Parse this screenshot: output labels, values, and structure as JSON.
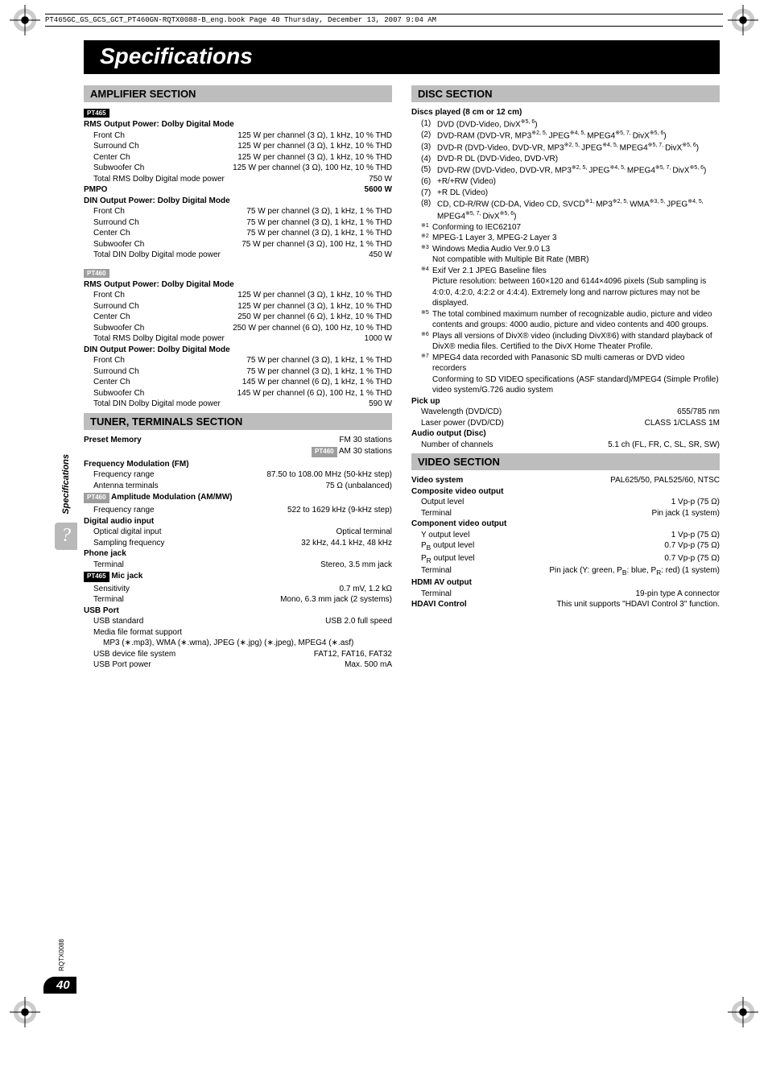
{
  "book_info": "PT465GC_GS_GCS_GCT_PT460GN-RQTX0088-B_eng.book  Page 40  Thursday, December 13, 2007  9:04 AM",
  "main_title": "Specifications",
  "side_label": "Specifications",
  "page_code": "RQTX0088",
  "page_number": "40",
  "amp": {
    "header": "AMPLIFIER SECTION",
    "pt465": "PT465",
    "pt460": "PT460",
    "rms_title": "RMS Output Power: Dolby Digital Mode",
    "din_title": "DIN Output Power: Dolby Digital Mode",
    "pt465_rms": {
      "front": {
        "l": "Front Ch",
        "v": "125 W per channel (3 Ω), 1 kHz, 10 % THD"
      },
      "surround": {
        "l": "Surround Ch",
        "v": "125 W per channel (3 Ω), 1 kHz, 10 % THD"
      },
      "center": {
        "l": "Center Ch",
        "v": "125 W per channel (3 Ω), 1 kHz, 10 % THD"
      },
      "sub": {
        "l": "Subwoofer Ch",
        "v": "125 W per channel (3 Ω), 100 Hz, 10 % THD"
      },
      "total": {
        "l": "Total RMS Dolby Digital mode power",
        "v": "750 W"
      }
    },
    "pmpo": {
      "l": "PMPO",
      "v": "5600 W"
    },
    "pt465_din": {
      "front": {
        "l": "Front Ch",
        "v": "75 W per channel (3 Ω), 1 kHz, 1 % THD"
      },
      "surround": {
        "l": "Surround Ch",
        "v": "75 W per channel (3 Ω), 1 kHz, 1 % THD"
      },
      "center": {
        "l": "Center Ch",
        "v": "75 W per channel (3 Ω), 1 kHz, 1 % THD"
      },
      "sub": {
        "l": "Subwoofer Ch",
        "v": "75 W per channel (3 Ω), 100 Hz, 1 % THD"
      },
      "total": {
        "l": "Total DIN Dolby Digital mode power",
        "v": "450 W"
      }
    },
    "pt460_rms": {
      "front": {
        "l": "Front Ch",
        "v": "125 W per channel (3 Ω), 1 kHz, 10 % THD"
      },
      "surround": {
        "l": "Surround Ch",
        "v": "125 W per channel (3 Ω), 1 kHz, 10 % THD"
      },
      "center": {
        "l": "Center Ch",
        "v": "250 W per channel (6 Ω), 1 kHz, 10 % THD"
      },
      "sub": {
        "l": "Subwoofer Ch",
        "v": "250 W per channel (6 Ω), 100 Hz, 10 % THD"
      },
      "total": {
        "l": "Total RMS Dolby Digital mode power",
        "v": "1000 W"
      }
    },
    "pt460_din": {
      "front": {
        "l": "Front Ch",
        "v": "75 W per channel (3 Ω), 1 kHz, 1 % THD"
      },
      "surround": {
        "l": "Surround Ch",
        "v": "75 W per channel (3 Ω), 1 kHz, 1 % THD"
      },
      "center": {
        "l": "Center Ch",
        "v": "145 W per channel (6 Ω), 1 kHz, 1 % THD"
      },
      "sub": {
        "l": "Subwoofer Ch",
        "v": "145 W per channel (6 Ω), 100 Hz, 1 % THD"
      },
      "total": {
        "l": "Total DIN Dolby Digital mode power",
        "v": "590 W"
      }
    }
  },
  "tuner": {
    "header": "TUNER, TERMINALS SECTION",
    "preset": {
      "l": "Preset Memory",
      "v1": "FM 30 stations",
      "v2": " AM 30 stations"
    },
    "fm_title": "Frequency Modulation (FM)",
    "fm_range": {
      "l": "Frequency range",
      "v": "87.50 to 108.00 MHz (50-kHz step)"
    },
    "fm_ant": {
      "l": "Antenna terminals",
      "v": "75 Ω (unbalanced)"
    },
    "am_title": " Amplitude Modulation (AM/MW)",
    "am_range": {
      "l": "Frequency range",
      "v": "522 to 1629 kHz (9-kHz step)"
    },
    "dig_title": "Digital audio input",
    "dig_opt": {
      "l": "Optical digital input",
      "v": "Optical terminal"
    },
    "dig_samp": {
      "l": "Sampling frequency",
      "v": "32 kHz, 44.1 kHz, 48 kHz"
    },
    "phone_title": "Phone jack",
    "phone_term": {
      "l": "Terminal",
      "v": "Stereo, 3.5 mm jack"
    },
    "mic_title": " Mic jack",
    "mic_sens": {
      "l": "Sensitivity",
      "v": "0.7 mV, 1.2 kΩ"
    },
    "mic_term": {
      "l": "Terminal",
      "v": "Mono, 6.3 mm jack (2 systems)"
    },
    "usb_title": "USB Port",
    "usb_std": {
      "l": "USB standard",
      "v": "USB 2.0 full speed"
    },
    "usb_media": {
      "l": "Media file format support"
    },
    "usb_media_val": "MP3 (∗.mp3), WMA (∗.wma), JPEG (∗.jpg) (∗.jpeg), MPEG4 (∗.asf)",
    "usb_fs": {
      "l": "USB device file system",
      "v": "FAT12, FAT16, FAT32"
    },
    "usb_power": {
      "l": "USB Port power",
      "v": "Max. 500 mA"
    }
  },
  "disc": {
    "header": "DISC SECTION",
    "title": "Discs played (8 cm or 12 cm)",
    "items": [
      {
        "n": "(1)",
        "t": "DVD (DVD-Video, DivX※5, 6)"
      },
      {
        "n": "(2)",
        "t": "DVD-RAM (DVD-VR, MP3※2, 5, JPEG※4, 5, MPEG4※5, 7, DivX※5, 6)"
      },
      {
        "n": "(3)",
        "t": "DVD-R (DVD-Video, DVD-VR, MP3※2, 5, JPEG※4, 5, MPEG4※5, 7, DivX※5, 6)"
      },
      {
        "n": "(4)",
        "t": "DVD-R DL (DVD-Video, DVD-VR)"
      },
      {
        "n": "(5)",
        "t": "DVD-RW (DVD-Video, DVD-VR, MP3※2, 5, JPEG※4, 5, MPEG4※5, 7, DivX※5, 6)"
      },
      {
        "n": "(6)",
        "t": "+R/+RW (Video)"
      },
      {
        "n": "(7)",
        "t": "+R DL (Video)"
      },
      {
        "n": "(8)",
        "t": "CD, CD-R/RW (CD-DA, Video CD, SVCD※1, MP3※2, 5, WMA※3, 5, JPEG※4, 5, MPEG4※5, 7, DivX※5, 6)"
      }
    ],
    "notes": [
      {
        "m": "※1",
        "t": "Conforming to IEC62107"
      },
      {
        "m": "※2",
        "t": "MPEG-1 Layer 3, MPEG-2 Layer 3"
      },
      {
        "m": "※3",
        "t": "Windows Media Audio Ver.9.0 L3\nNot compatible with Multiple Bit Rate (MBR)"
      },
      {
        "m": "※4",
        "t": "Exif Ver 2.1 JPEG Baseline files\nPicture resolution: between 160×120 and 6144×4096 pixels (Sub sampling is 4:0:0, 4:2:0, 4:2:2 or 4:4:4). Extremely long and narrow pictures may not be displayed."
      },
      {
        "m": "※5",
        "t": "The total combined maximum number of recognizable audio, picture and video contents and groups: 4000 audio, picture and video contents and 400 groups."
      },
      {
        "m": "※6",
        "t": "Plays all versions of DivX® video (including DivX®6) with standard playback of DivX® media files. Certified to the DivX Home Theater Profile."
      },
      {
        "m": "※7",
        "t": "MPEG4 data recorded with Panasonic SD multi cameras or DVD video recorders\nConforming to SD VIDEO specifications (ASF standard)/MPEG4 (Simple Profile) video system/G.726 audio system"
      }
    ],
    "pickup_title": "Pick up",
    "wavelength": {
      "l": "Wavelength (DVD/CD)",
      "v": "655/785 nm"
    },
    "laser": {
      "l": "Laser power (DVD/CD)",
      "v": "CLASS 1/CLASS 1M"
    },
    "audio_out_title": "Audio output (Disc)",
    "channels": {
      "l": "Number of channels",
      "v": "5.1 ch (FL, FR, C, SL, SR, SW)"
    }
  },
  "video": {
    "header": "VIDEO SECTION",
    "system": {
      "l": "Video system",
      "v": "PAL625/50, PAL525/60, NTSC"
    },
    "composite_title": "Composite video output",
    "comp_out": {
      "l": "Output level",
      "v": "1 Vp-p (75 Ω)"
    },
    "comp_term": {
      "l": "Terminal",
      "v": "Pin jack (1 system)"
    },
    "component_title": "Component video output",
    "y_out": {
      "l": "Y output level",
      "v": "1 Vp-p (75 Ω)"
    },
    "pb_out": {
      "l": "PB output level",
      "v": "0.7 Vp-p (75 Ω)"
    },
    "pr_out": {
      "l": "PR output level",
      "v": "0.7 Vp-p (75 Ω)"
    },
    "cpn_term": {
      "l": "Terminal",
      "v": "Pin jack (Y: green, PB: blue, PR: red) (1 system)"
    },
    "hdmi_title": "HDMI AV output",
    "hdmi_term": {
      "l": "Terminal",
      "v": "19-pin type A connector"
    },
    "hdavi": {
      "l": "HDAVI Control",
      "v": "This unit supports \"HDAVI Control 3\" function."
    }
  }
}
